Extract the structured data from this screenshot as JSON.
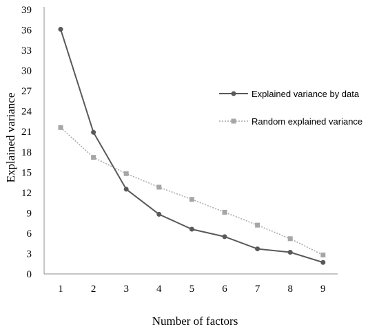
{
  "chart_data": {
    "type": "line",
    "title": "",
    "xlabel": "Number of factors",
    "ylabel": "Explained  variance",
    "x": [
      1,
      2,
      3,
      4,
      5,
      6,
      7,
      8,
      9
    ],
    "ylim": [
      0,
      39
    ],
    "yticks": [
      0,
      3,
      6,
      9,
      12,
      15,
      18,
      21,
      24,
      27,
      30,
      33,
      36,
      39
    ],
    "grid": false,
    "legend_position": "right",
    "series": [
      {
        "name": "Explained variance by data",
        "values": [
          36.1,
          20.9,
          12.5,
          8.8,
          6.6,
          5.5,
          3.7,
          3.2,
          1.7
        ],
        "color": "#595959",
        "marker": "circle",
        "line_style": "solid"
      },
      {
        "name": "Random explained variance",
        "values": [
          21.6,
          17.2,
          14.8,
          12.8,
          11.0,
          9.1,
          7.2,
          5.2,
          2.8
        ],
        "color": "#a6a6a6",
        "marker": "square",
        "line_style": "dotted"
      }
    ]
  }
}
